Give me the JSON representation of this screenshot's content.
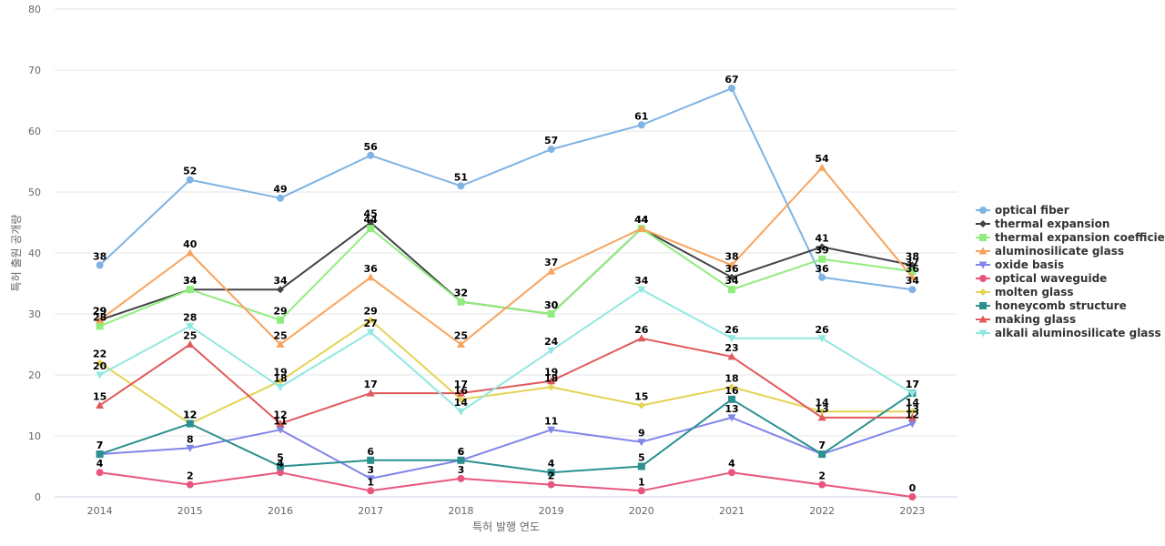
{
  "chart_data": {
    "type": "line",
    "title": "",
    "xlabel": "특허 발행 연도",
    "ylabel": "특허 출원 공개량",
    "ylim": [
      0,
      80
    ],
    "yticks": [
      0,
      10,
      20,
      30,
      40,
      50,
      60,
      70,
      80
    ],
    "grid": true,
    "legend_position": "right",
    "categories": [
      "2014",
      "2015",
      "2016",
      "2017",
      "2018",
      "2019",
      "2020",
      "2021",
      "2022",
      "2023"
    ],
    "series": [
      {
        "name": "optical fiber",
        "color": "#7eb3e3",
        "marker": "circle",
        "values": [
          38,
          52,
          49,
          56,
          51,
          57,
          61,
          67,
          36,
          34
        ]
      },
      {
        "name": "thermal expansion",
        "color": "#434348",
        "marker": "diamond",
        "values": [
          29,
          34,
          34,
          45,
          32,
          30,
          44,
          36,
          41,
          38
        ]
      },
      {
        "name": "thermal expansion coefficient",
        "color": "#90ed7d",
        "marker": "square",
        "values": [
          28,
          34,
          29,
          44,
          32,
          30,
          44,
          34,
          39,
          37
        ]
      },
      {
        "name": "aluminosilicate glass",
        "color": "#f7a35c",
        "marker": "triangle",
        "values": [
          29,
          40,
          25,
          36,
          25,
          37,
          44,
          38,
          54,
          36
        ]
      },
      {
        "name": "oxide basis",
        "color": "#8085e9",
        "marker": "triangle-down",
        "values": [
          7,
          8,
          11,
          3,
          6,
          11,
          9,
          13,
          7,
          12
        ]
      },
      {
        "name": "optical waveguide",
        "color": "#e8567e",
        "marker": "circle",
        "values": [
          4,
          2,
          4,
          1,
          3,
          2,
          1,
          4,
          2,
          0
        ]
      },
      {
        "name": "molten glass",
        "color": "#e4d354",
        "marker": "diamond",
        "values": [
          22,
          12,
          19,
          29,
          16,
          18,
          15,
          18,
          14,
          14
        ]
      },
      {
        "name": "honeycomb structure",
        "color": "#2b908f",
        "marker": "square",
        "values": [
          7,
          12,
          5,
          6,
          6,
          4,
          5,
          16,
          7,
          17
        ]
      },
      {
        "name": "making glass",
        "color": "#e05a5a",
        "marker": "triangle",
        "values": [
          15,
          25,
          12,
          17,
          17,
          19,
          26,
          23,
          13,
          13
        ]
      },
      {
        "name": "alkali aluminosilicate glass",
        "color": "#91e8e1",
        "marker": "triangle-down",
        "values": [
          20,
          28,
          18,
          27,
          14,
          24,
          34,
          26,
          26,
          17
        ]
      }
    ]
  }
}
